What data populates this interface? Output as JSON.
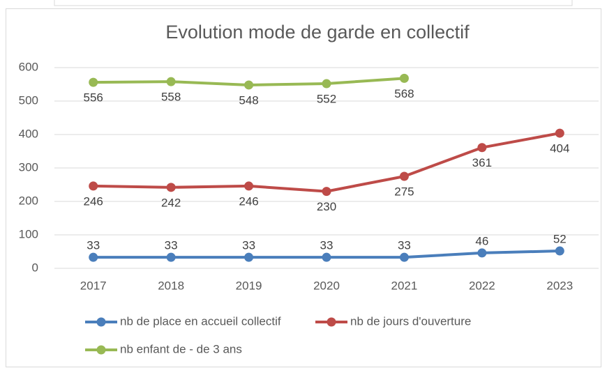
{
  "chart_data": {
    "type": "line",
    "title": "Evolution mode de garde en collectif",
    "categories": [
      "2017",
      "2018",
      "2019",
      "2020",
      "2021",
      "2022",
      "2023"
    ],
    "series": [
      {
        "name": "nb de place en accueil collectif",
        "color": "#4a7ebb",
        "values": [
          33,
          33,
          33,
          33,
          33,
          46,
          52
        ]
      },
      {
        "name": "nb de jours d'ouverture",
        "color": "#be4b48",
        "values": [
          246,
          242,
          246,
          230,
          275,
          361,
          404
        ]
      },
      {
        "name": "nb enfant de - de 3 ans",
        "color": "#98b954",
        "values": [
          556,
          558,
          548,
          552,
          568,
          null,
          null
        ]
      }
    ],
    "ylim": [
      0,
      600
    ],
    "yticks": [
      0,
      100,
      200,
      300,
      400,
      500,
      600
    ],
    "grid": true,
    "legend": "bottom"
  }
}
